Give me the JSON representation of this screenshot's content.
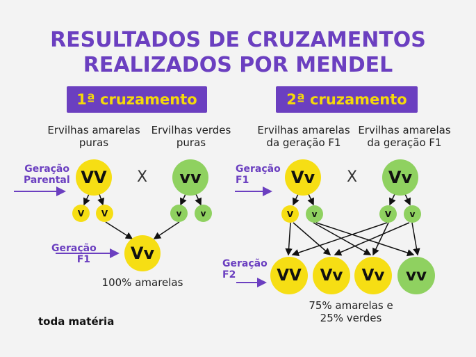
{
  "title": {
    "line1": "RESULTADOS DE CRUZAMENTOS",
    "line2": "REALIZADOS POR MENDEL"
  },
  "cross1": {
    "label": "1ª cruzamento",
    "parent_left": "Ervilhas amarelas puras",
    "parent_right": "Ervilhas verdes puras",
    "gen_parental": "Geração Parental",
    "gen_f1": "Geração F1",
    "cross_symbol": "X",
    "parent_left_genotype": "VV",
    "parent_right_genotype": "vv",
    "gamete_left": [
      "V",
      "V"
    ],
    "gamete_right": [
      "v",
      "v"
    ],
    "offspring_genotype": "Vv",
    "result": "100% amarelas"
  },
  "cross2": {
    "label": "2ª cruzamento",
    "parent_left": "Ervilhas amarelas da geração F1",
    "parent_right": "Ervilhas amarelas da geração F1",
    "gen_f1": "Geração F1",
    "gen_f2": "Geração F2",
    "cross_symbol": "X",
    "parent_left_genotype": "Vv",
    "parent_right_genotype": "Vv",
    "gamete_left": [
      "V",
      "v"
    ],
    "gamete_right": [
      "V",
      "v"
    ],
    "offspring": [
      "VV",
      "Vv",
      "Vv",
      "vv"
    ],
    "result": "75% amarelas e 25% verdes"
  },
  "brand": "toda matéria",
  "colors": {
    "purple": "#6b3fc0",
    "yellow": "#f6de14",
    "green": "#8fd160",
    "label_text": "#f5d90a"
  }
}
